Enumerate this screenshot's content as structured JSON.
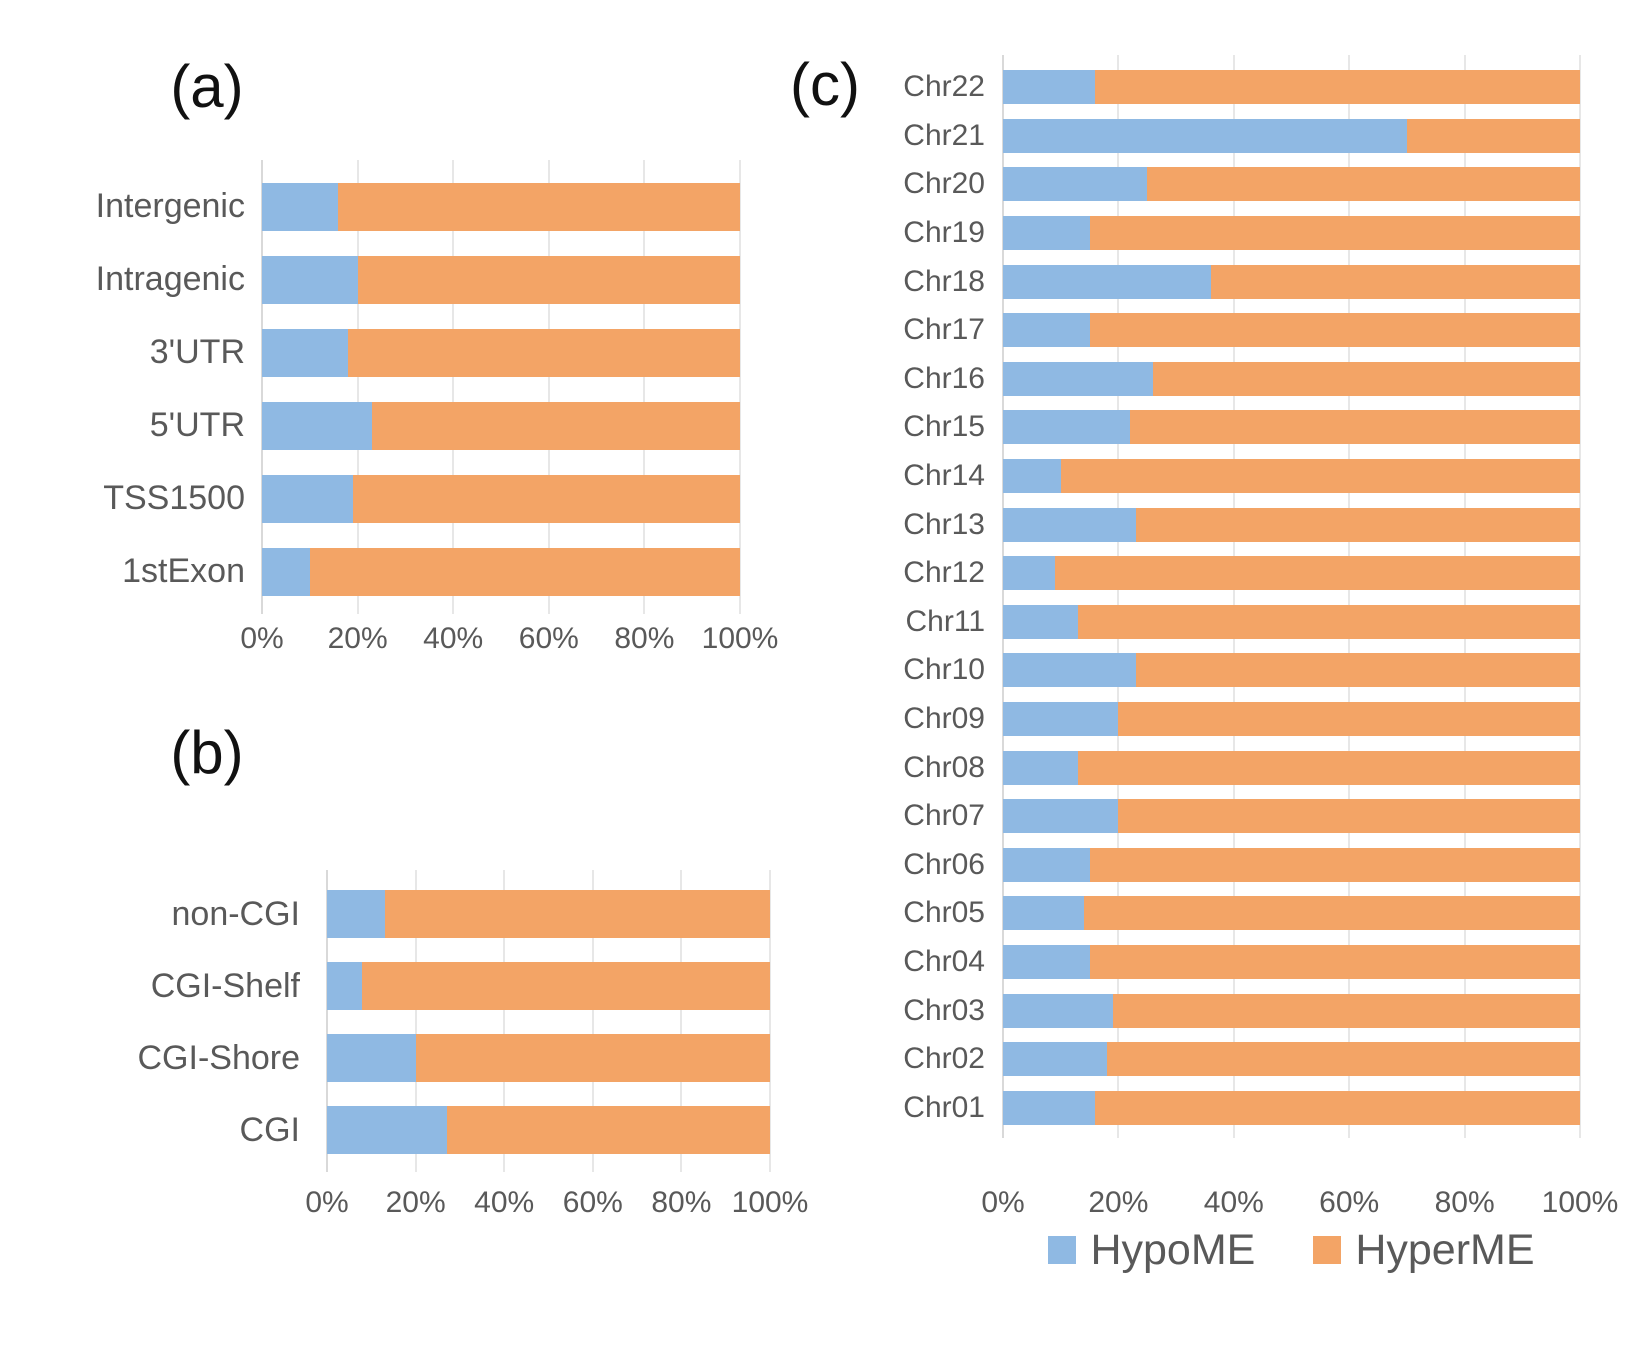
{
  "legend": {
    "items": [
      {
        "label": "HypoME",
        "color": "#8fb9e3"
      },
      {
        "label": "HyperME",
        "color": "#f3a466"
      }
    ]
  },
  "colors": {
    "hypo_blue": "#8fb9e3",
    "hyper_orange": "#f3a466",
    "label_gray": "#595959",
    "gridline": "#e7e7e7"
  },
  "chart_data": [
    {
      "id": "a",
      "type": "bar",
      "orientation": "horizontal",
      "stacked": true,
      "title": "(a)",
      "categories": [
        "Intergenic",
        "Intragenic",
        "3'UTR",
        "5'UTR",
        "TSS1500",
        "1stExon"
      ],
      "series": [
        {
          "name": "HypoME",
          "values": [
            16,
            20,
            18,
            23,
            19,
            10
          ]
        },
        {
          "name": "HyperME",
          "values": [
            84,
            80,
            82,
            77,
            81,
            90
          ]
        }
      ],
      "x_ticks": [
        "0%",
        "20%",
        "40%",
        "60%",
        "80%",
        "100%"
      ],
      "xlim": [
        0,
        100
      ],
      "grid": true,
      "unit": "%"
    },
    {
      "id": "b",
      "type": "bar",
      "orientation": "horizontal",
      "stacked": true,
      "title": "(b)",
      "categories": [
        "non-CGI",
        "CGI-Shelf",
        "CGI-Shore",
        "CGI"
      ],
      "series": [
        {
          "name": "HypoME",
          "values": [
            13,
            8,
            20,
            27
          ]
        },
        {
          "name": "HyperME",
          "values": [
            87,
            92,
            80,
            73
          ]
        }
      ],
      "x_ticks": [
        "0%",
        "20%",
        "40%",
        "60%",
        "80%",
        "100%"
      ],
      "xlim": [
        0,
        100
      ],
      "grid": true,
      "unit": "%"
    },
    {
      "id": "c",
      "type": "bar",
      "orientation": "horizontal",
      "stacked": true,
      "title": "(c)",
      "categories": [
        "Chr22",
        "Chr21",
        "Chr20",
        "Chr19",
        "Chr18",
        "Chr17",
        "Chr16",
        "Chr15",
        "Chr14",
        "Chr13",
        "Chr12",
        "Chr11",
        "Chr10",
        "Chr09",
        "Chr08",
        "Chr07",
        "Chr06",
        "Chr05",
        "Chr04",
        "Chr03",
        "Chr02",
        "Chr01"
      ],
      "series": [
        {
          "name": "HypoME",
          "values": [
            16,
            70,
            25,
            15,
            36,
            15,
            26,
            22,
            10,
            23,
            9,
            13,
            23,
            20,
            13,
            20,
            15,
            14,
            15,
            19,
            18,
            16
          ]
        },
        {
          "name": "HyperME",
          "values": [
            84,
            30,
            75,
            85,
            64,
            85,
            74,
            78,
            90,
            77,
            91,
            87,
            77,
            80,
            87,
            80,
            85,
            86,
            85,
            81,
            82,
            84
          ]
        }
      ],
      "x_ticks": [
        "0%",
        "20%",
        "40%",
        "60%",
        "80%",
        "100%"
      ],
      "xlim": [
        0,
        100
      ],
      "grid": true,
      "unit": "%",
      "legend_position": "bottom"
    }
  ]
}
